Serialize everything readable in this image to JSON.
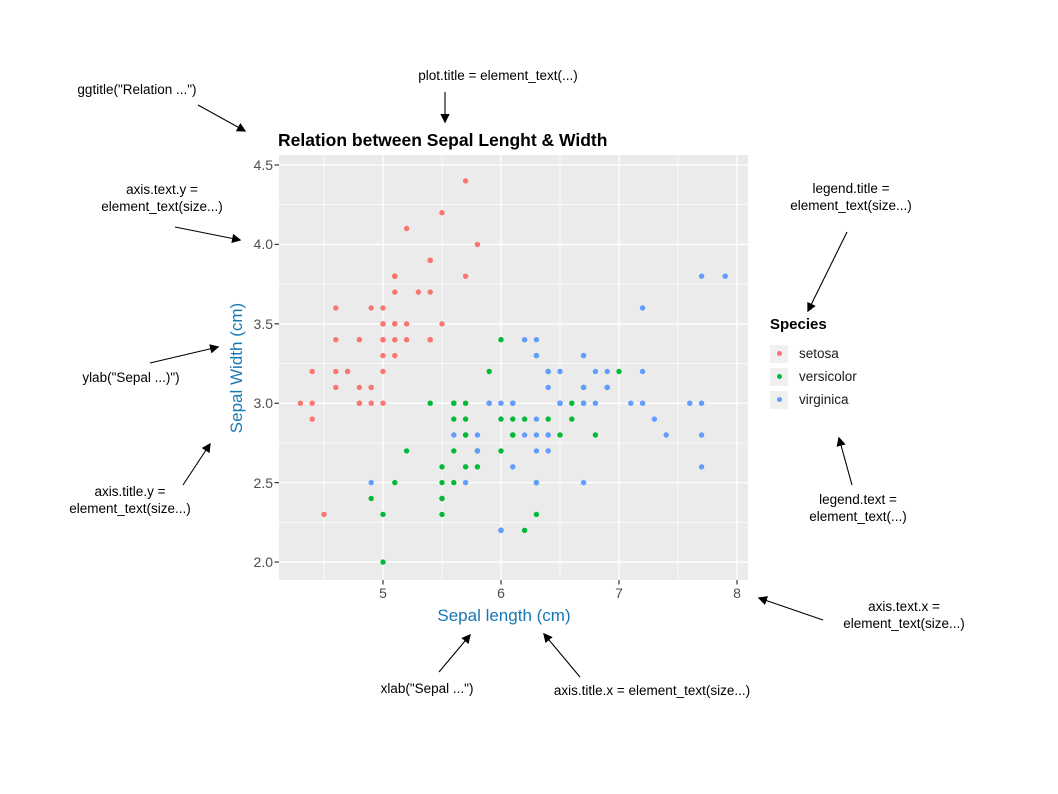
{
  "chart_data": {
    "type": "scatter",
    "title": "Relation between Sepal Lenght & Width",
    "xlabel": "Sepal length (cm)",
    "ylabel": "Sepal Width (cm)",
    "x_domain": [
      4.119,
      8.093
    ],
    "y_domain": [
      1.887,
      4.563
    ],
    "x_ticks": [
      5,
      6,
      7,
      8
    ],
    "x_tick_labels": [
      "5",
      "6",
      "7",
      "8"
    ],
    "y_ticks": [
      2.0,
      2.5,
      3.0,
      3.5,
      4.0,
      4.5
    ],
    "y_tick_labels": [
      "2.0",
      "2.5",
      "3.0",
      "3.5",
      "4.0",
      "4.5"
    ],
    "x_minor_ticks": [
      4.5,
      5.5,
      6.5,
      7.5
    ],
    "y_minor_ticks": [
      2.25,
      2.75,
      3.25,
      3.75,
      4.25
    ],
    "panel_bg": "#EBEBEB",
    "grid_color": "#FFFFFF",
    "axis_title_color": "#1878B4",
    "axis_text_color": "#4D4D4D",
    "point_radius": 2.7,
    "legend_position": "right",
    "series": [
      {
        "name": "setosa",
        "color": "#F8766D",
        "points": [
          [
            5.1,
            3.5
          ],
          [
            4.9,
            3.0
          ],
          [
            4.7,
            3.2
          ],
          [
            4.6,
            3.1
          ],
          [
            5.0,
            3.6
          ],
          [
            5.4,
            3.9
          ],
          [
            4.6,
            3.4
          ],
          [
            5.0,
            3.4
          ],
          [
            4.4,
            2.9
          ],
          [
            4.9,
            3.1
          ],
          [
            5.4,
            3.7
          ],
          [
            4.8,
            3.4
          ],
          [
            4.8,
            3.0
          ],
          [
            4.3,
            3.0
          ],
          [
            5.8,
            4.0
          ],
          [
            5.7,
            4.4
          ],
          [
            5.4,
            3.9
          ],
          [
            5.1,
            3.5
          ],
          [
            5.7,
            3.8
          ],
          [
            5.1,
            3.8
          ],
          [
            5.4,
            3.4
          ],
          [
            5.1,
            3.7
          ],
          [
            4.6,
            3.6
          ],
          [
            5.1,
            3.3
          ],
          [
            4.8,
            3.4
          ],
          [
            5.0,
            3.0
          ],
          [
            5.0,
            3.4
          ],
          [
            5.2,
            3.5
          ],
          [
            5.2,
            3.4
          ],
          [
            4.7,
            3.2
          ],
          [
            4.8,
            3.1
          ],
          [
            5.4,
            3.4
          ],
          [
            5.2,
            4.1
          ],
          [
            5.5,
            4.2
          ],
          [
            4.9,
            3.1
          ],
          [
            5.0,
            3.2
          ],
          [
            5.5,
            3.5
          ],
          [
            4.9,
            3.6
          ],
          [
            4.4,
            3.0
          ],
          [
            5.1,
            3.4
          ],
          [
            5.0,
            3.5
          ],
          [
            4.5,
            2.3
          ],
          [
            4.4,
            3.2
          ],
          [
            5.0,
            3.5
          ],
          [
            5.1,
            3.8
          ],
          [
            4.8,
            3.0
          ],
          [
            5.1,
            3.8
          ],
          [
            4.6,
            3.2
          ],
          [
            5.3,
            3.7
          ],
          [
            5.0,
            3.3
          ]
        ]
      },
      {
        "name": "versicolor",
        "color": "#00BA38",
        "points": [
          [
            7.0,
            3.2
          ],
          [
            6.4,
            3.2
          ],
          [
            6.9,
            3.1
          ],
          [
            5.5,
            2.3
          ],
          [
            6.5,
            2.8
          ],
          [
            5.7,
            2.8
          ],
          [
            6.3,
            3.3
          ],
          [
            4.9,
            2.4
          ],
          [
            6.6,
            2.9
          ],
          [
            5.2,
            2.7
          ],
          [
            5.0,
            2.0
          ],
          [
            5.9,
            3.0
          ],
          [
            6.0,
            2.2
          ],
          [
            6.1,
            2.9
          ],
          [
            5.6,
            2.9
          ],
          [
            6.7,
            3.1
          ],
          [
            5.6,
            3.0
          ],
          [
            5.8,
            2.7
          ],
          [
            6.2,
            2.2
          ],
          [
            5.6,
            2.5
          ],
          [
            5.9,
            3.2
          ],
          [
            6.1,
            2.8
          ],
          [
            6.3,
            2.5
          ],
          [
            6.1,
            2.8
          ],
          [
            6.4,
            2.9
          ],
          [
            6.6,
            3.0
          ],
          [
            6.8,
            2.8
          ],
          [
            6.7,
            3.0
          ],
          [
            6.0,
            2.9
          ],
          [
            5.7,
            2.6
          ],
          [
            5.5,
            2.4
          ],
          [
            5.5,
            2.4
          ],
          [
            5.8,
            2.7
          ],
          [
            6.0,
            2.7
          ],
          [
            5.4,
            3.0
          ],
          [
            6.0,
            3.4
          ],
          [
            6.7,
            3.1
          ],
          [
            6.3,
            2.3
          ],
          [
            5.6,
            3.0
          ],
          [
            5.5,
            2.5
          ],
          [
            5.5,
            2.6
          ],
          [
            6.1,
            3.0
          ],
          [
            5.8,
            2.6
          ],
          [
            5.0,
            2.3
          ],
          [
            5.6,
            2.7
          ],
          [
            5.7,
            3.0
          ],
          [
            5.7,
            2.9
          ],
          [
            6.2,
            2.9
          ],
          [
            5.1,
            2.5
          ],
          [
            5.7,
            2.8
          ]
        ]
      },
      {
        "name": "virginica",
        "color": "#619CFF",
        "points": [
          [
            6.3,
            3.3
          ],
          [
            5.8,
            2.7
          ],
          [
            7.1,
            3.0
          ],
          [
            6.3,
            2.9
          ],
          [
            6.5,
            3.0
          ],
          [
            7.6,
            3.0
          ],
          [
            4.9,
            2.5
          ],
          [
            7.3,
            2.9
          ],
          [
            6.7,
            2.5
          ],
          [
            7.2,
            3.6
          ],
          [
            6.5,
            3.2
          ],
          [
            6.4,
            2.7
          ],
          [
            6.8,
            3.0
          ],
          [
            5.7,
            2.5
          ],
          [
            5.8,
            2.8
          ],
          [
            6.4,
            3.2
          ],
          [
            6.5,
            3.0
          ],
          [
            7.7,
            3.8
          ],
          [
            7.7,
            2.6
          ],
          [
            6.0,
            2.2
          ],
          [
            6.9,
            3.2
          ],
          [
            5.6,
            2.8
          ],
          [
            7.7,
            2.8
          ],
          [
            6.3,
            2.7
          ],
          [
            6.7,
            3.3
          ],
          [
            7.2,
            3.2
          ],
          [
            6.2,
            2.8
          ],
          [
            6.1,
            3.0
          ],
          [
            6.4,
            2.8
          ],
          [
            7.2,
            3.0
          ],
          [
            7.4,
            2.8
          ],
          [
            7.9,
            3.8
          ],
          [
            6.4,
            2.8
          ],
          [
            6.3,
            2.8
          ],
          [
            6.1,
            2.6
          ],
          [
            7.7,
            3.0
          ],
          [
            6.3,
            3.4
          ],
          [
            6.4,
            3.1
          ],
          [
            6.0,
            3.0
          ],
          [
            6.9,
            3.1
          ],
          [
            6.7,
            3.1
          ],
          [
            6.9,
            3.1
          ],
          [
            5.8,
            2.7
          ],
          [
            6.8,
            3.2
          ],
          [
            6.7,
            3.3
          ],
          [
            6.7,
            3.0
          ],
          [
            6.3,
            2.5
          ],
          [
            6.5,
            3.0
          ],
          [
            6.2,
            3.4
          ],
          [
            5.9,
            3.0
          ]
        ]
      }
    ]
  },
  "legend": {
    "title": "Species",
    "items": [
      {
        "label": "setosa",
        "color": "#F8766D"
      },
      {
        "label": "versicolor",
        "color": "#00BA38"
      },
      {
        "label": "virginica",
        "color": "#619CFF"
      }
    ]
  },
  "annotations": {
    "ggtitle": "ggtitle(\"Relation ...\")",
    "plot_title": "plot.title = element_text(...)",
    "axis_text_y": "axis.text.y =\nelement_text(size...)",
    "ylab": "ylab(\"Sepal ...)\")",
    "axis_title_y": "axis.title.y =\nelement_text(size...)",
    "legend_title": "legend.title =\nelement_text(size...)",
    "legend_text": "legend.text =\nelement_text(...)",
    "axis_text_x": "axis.text.x =\nelement_text(size...)",
    "xlab": "xlab(\"Sepal ...\")",
    "axis_title_x": "axis.title.x = element_text(size...)"
  }
}
